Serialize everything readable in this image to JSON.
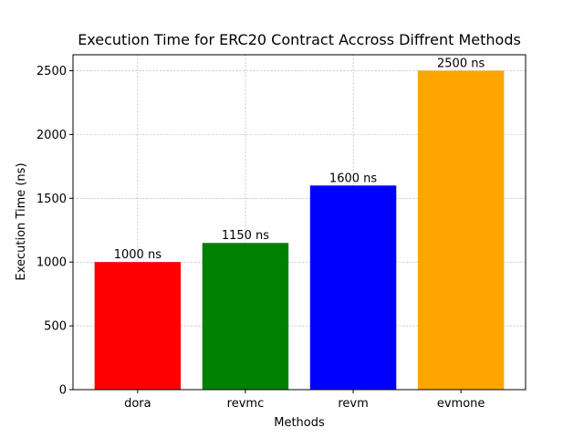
{
  "chart_data": {
    "type": "bar",
    "title": "Execution Time for ERC20 Contract Accross Diffrent Methods",
    "xlabel": "Methods",
    "ylabel": "Execution Time (ns)",
    "categories": [
      "dora",
      "revmc",
      "revm",
      "evmone"
    ],
    "values": [
      1000,
      1150,
      1600,
      2500
    ],
    "data_labels": [
      "1000 ns",
      "1150 ns",
      "1600 ns",
      "2500 ns"
    ],
    "colors": [
      "#ff0000",
      "#008000",
      "#0000ff",
      "#ffa500"
    ],
    "ylim": [
      0,
      2625
    ],
    "yticks": [
      0,
      500,
      1000,
      1500,
      2000,
      2500
    ],
    "ytick_labels": [
      "0",
      "500",
      "1000",
      "1500",
      "2000",
      "2500"
    ],
    "grid": true
  }
}
